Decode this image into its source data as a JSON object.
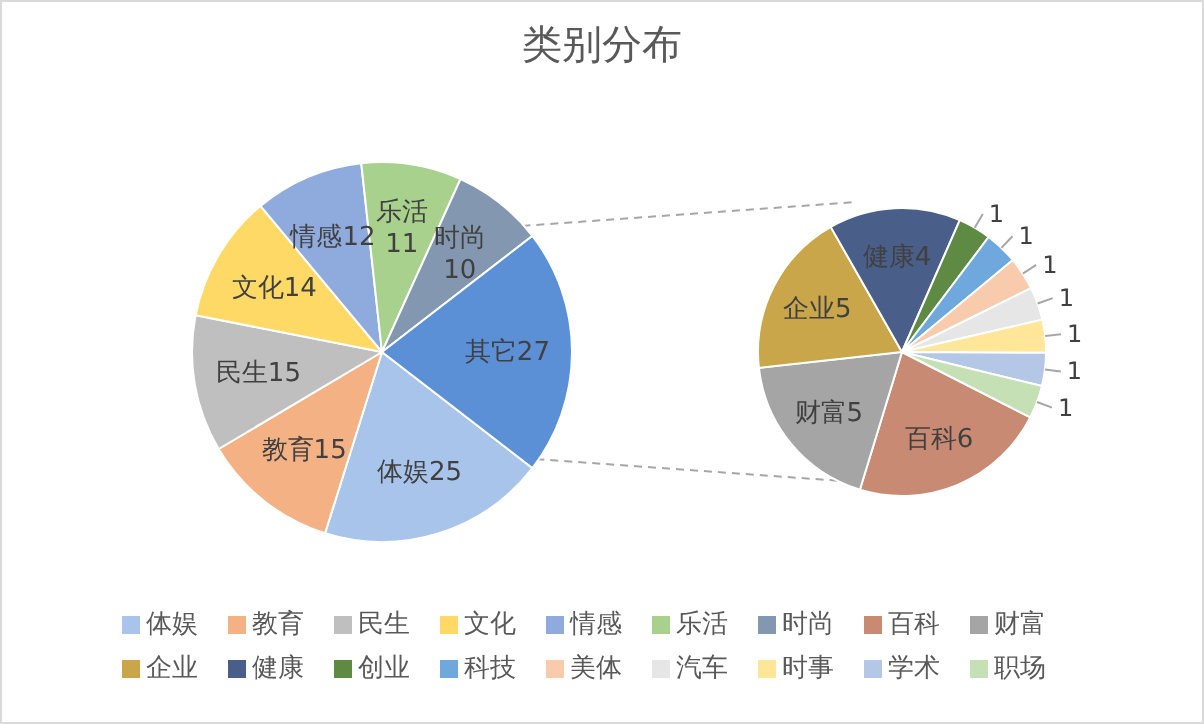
{
  "chart_data": [
    {
      "type": "pie",
      "title": "类别分布",
      "categories": [
        "体娱",
        "教育",
        "民生",
        "文化",
        "情感",
        "乐活",
        "时尚",
        "其它"
      ],
      "values": [
        25,
        15,
        15,
        14,
        12,
        11,
        10,
        27
      ],
      "colors": [
        "#a9c4eb",
        "#f4b183",
        "#bfbfbf",
        "#ffd966",
        "#8faadc",
        "#a9d18e",
        "#8497b0",
        "#5b8fd6"
      ],
      "data_labels": true,
      "legend": "bottom"
    },
    {
      "type": "pie",
      "categories": [
        "百科",
        "财富",
        "企业",
        "健康",
        "创业",
        "科技",
        "美体",
        "汽车",
        "时事",
        "学术",
        "职场"
      ],
      "values": [
        6,
        5,
        5,
        4,
        1,
        1,
        1,
        1,
        1,
        1,
        1
      ],
      "colors": [
        "#c98a74",
        "#a5a5a5",
        "#c9a64a",
        "#4a5e8a",
        "#5e8a44",
        "#6fa8dc",
        "#f8cbad",
        "#e6e6e6",
        "#ffe699",
        "#b4c7e7",
        "#c5e0b4"
      ],
      "data_labels": true,
      "legend": "bottom"
    }
  ]
}
